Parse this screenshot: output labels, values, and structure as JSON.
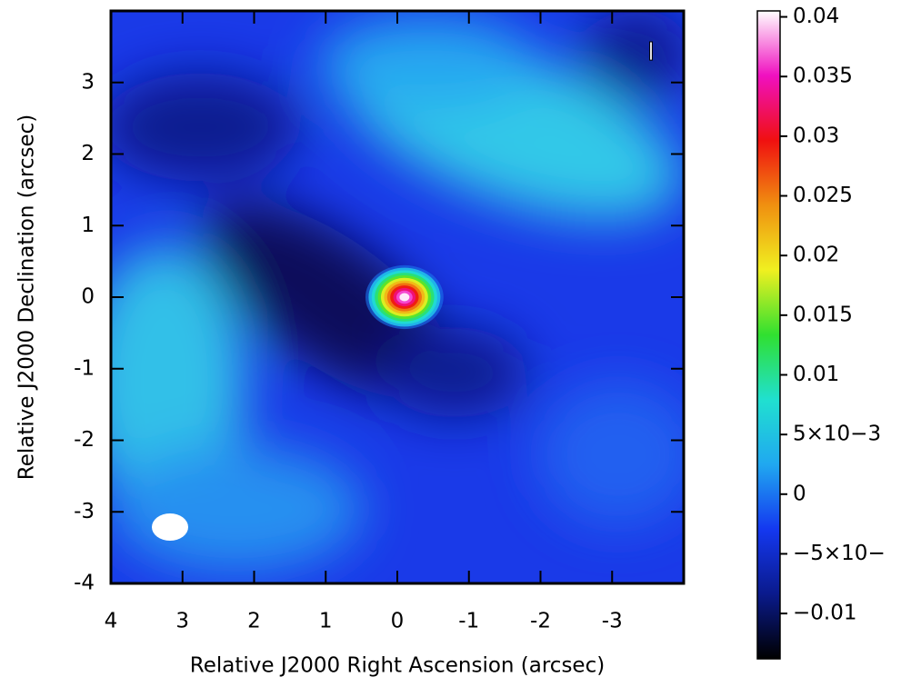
{
  "chart_data": {
    "type": "image",
    "xlabel": "Relative J2000 Right Ascension (arcsec)",
    "ylabel": "Relative J2000 Declination (arcsec)",
    "stokes_label": "I",
    "xlim": [
      4,
      -4
    ],
    "xticks": [
      4,
      3,
      2,
      1,
      0,
      -1,
      -2,
      -3
    ],
    "ylim": [
      -4,
      4
    ],
    "yticks": [
      -4,
      -3,
      -2,
      -1,
      0,
      1,
      2,
      3
    ],
    "clim": [
      -0.0138,
      0.0405
    ],
    "cticks": [
      {
        "value": -0.01,
        "label": "−0.01"
      },
      {
        "value": -0.005,
        "label": "−5×10−"
      },
      0,
      {
        "value": 0.005,
        "label": "5×10−3"
      },
      0.01,
      0.015,
      0.02,
      0.025,
      0.03,
      0.035,
      0.04
    ],
    "colormap": [
      "#000000",
      "#0a1a8c",
      "#1438f0",
      "#20a8f0",
      "#20e0d0",
      "#30e030",
      "#f0f020",
      "#f09010",
      "#f01010",
      "#f010c0",
      "#ffffff"
    ],
    "source": {
      "x": -0.1,
      "y": 0,
      "peak": 0.04
    }
  }
}
